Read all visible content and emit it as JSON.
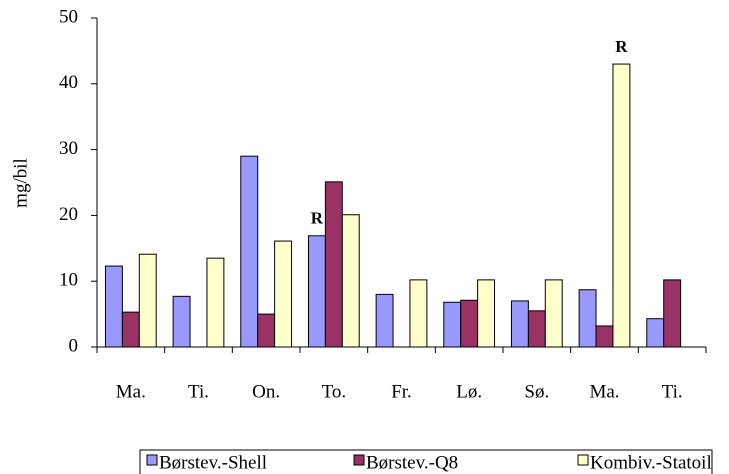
{
  "chart_data": {
    "type": "bar",
    "y_label": "mg/bil",
    "categories": [
      "Ma.",
      "Ti.",
      "On.",
      "To.",
      "Fr.",
      "Lø.",
      "Sø.",
      "Ma.",
      "Ti."
    ],
    "series": [
      {
        "name": "Børstev.-Shell",
        "color": "#9999ff",
        "values": [
          12.3,
          7.7,
          29.0,
          16.9,
          8.0,
          6.8,
          7.0,
          8.7,
          4.3
        ]
      },
      {
        "name": "Børstev.-Q8",
        "color": "#993366",
        "values": [
          5.3,
          null,
          5.0,
          25.1,
          null,
          7.1,
          5.5,
          3.2,
          10.2
        ]
      },
      {
        "name": "Kombiv.-Statoil",
        "color": "#ffffcc",
        "values": [
          14.1,
          13.5,
          16.1,
          20.1,
          10.2,
          10.2,
          10.2,
          43.0,
          null
        ]
      }
    ],
    "annotations": [
      {
        "text": "R",
        "category": 3,
        "series": 0
      },
      {
        "text": "R",
        "category": 7,
        "series": 2
      }
    ],
    "ylim": [
      0,
      50
    ],
    "yticks": [
      0,
      10,
      20,
      30,
      40,
      50
    ],
    "legend": "bottom"
  }
}
